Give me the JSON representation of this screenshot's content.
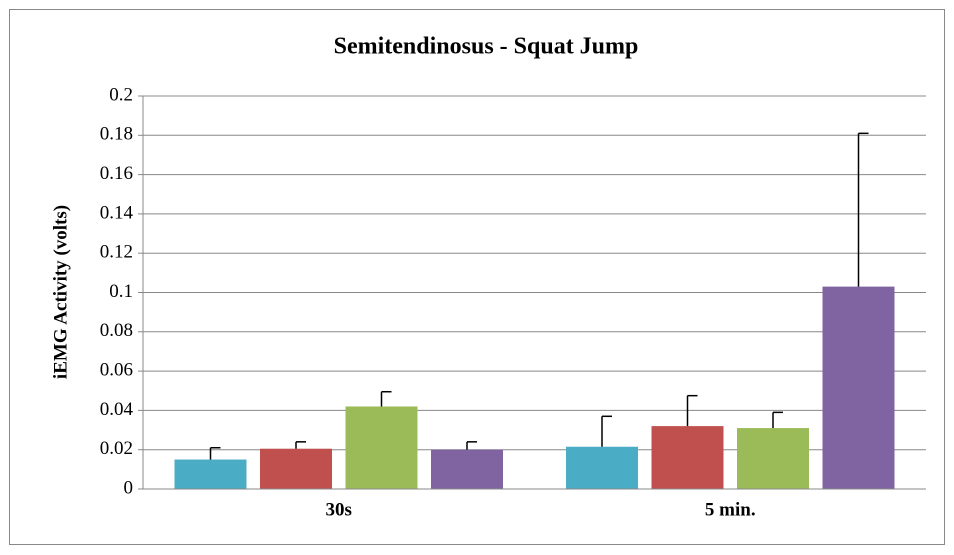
{
  "chart_data": {
    "type": "bar",
    "title": "Semitendinosus - Squat Jump",
    "y_label": "iEMG Activity (volts)",
    "categories": [
      "30s",
      "5 min."
    ],
    "series": [
      {
        "color": "#4bacc6",
        "values": [
          0.015,
          0.0215
        ],
        "errors": [
          0.006,
          0.0155
        ]
      },
      {
        "color": "#c0504d",
        "values": [
          0.0205,
          0.032
        ],
        "errors": [
          0.0035,
          0.0155
        ]
      },
      {
        "color": "#9bbb59",
        "values": [
          0.042,
          0.031
        ],
        "errors": [
          0.0075,
          0.008
        ]
      },
      {
        "color": "#8064a2",
        "values": [
          0.02,
          0.103
        ],
        "errors": [
          0.004,
          0.078
        ]
      }
    ],
    "ylim": [
      0,
      0.2
    ],
    "yticks": [
      0,
      0.02,
      0.04,
      0.06,
      0.08,
      0.1,
      0.12,
      0.14,
      0.16,
      0.18,
      0.2
    ],
    "grid": true
  }
}
